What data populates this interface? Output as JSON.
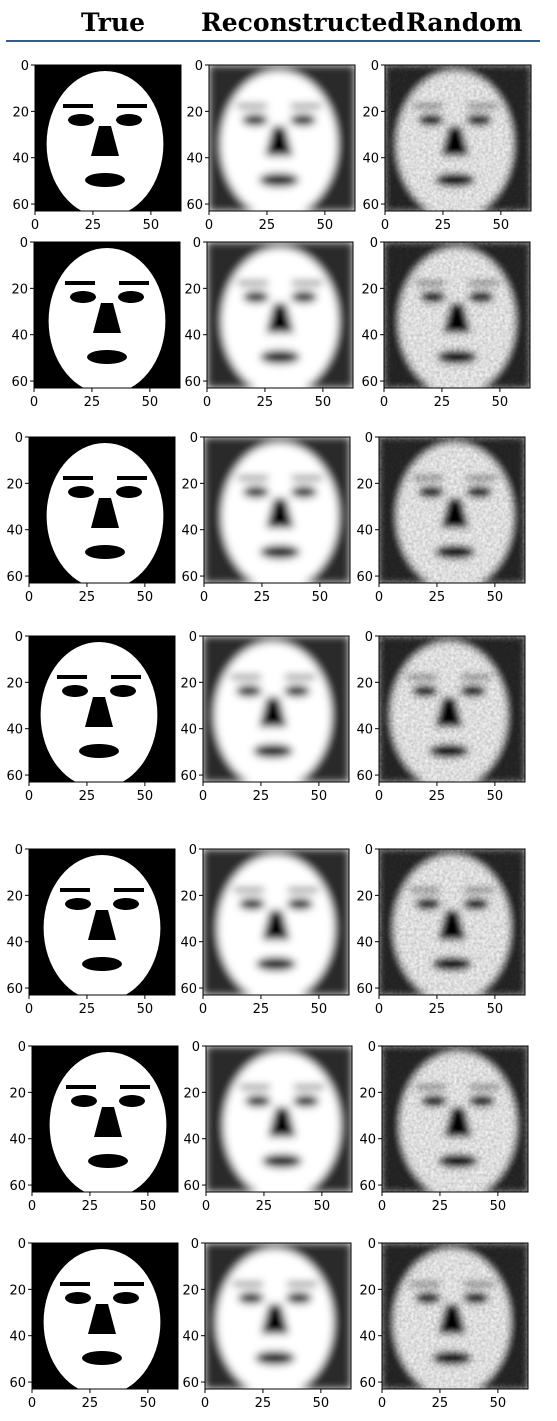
{
  "column_headers": [
    "True",
    "Reconstructed",
    "Random"
  ],
  "colors": {
    "header_rule": "#2f5f8f",
    "axis": "#000000",
    "ink": "#000000",
    "paper": "#ffffff"
  },
  "chart_data": {
    "type": "heatmap",
    "layout": "7 rows x 3 columns grid of grayscale 64x64 face images",
    "colormap": "gray",
    "columns": [
      "True",
      "Reconstructed",
      "Random"
    ],
    "rows": 7,
    "image_size": [
      64,
      64
    ],
    "xlim": [
      0,
      63
    ],
    "ylim": [
      63,
      0
    ],
    "xticks": [
      0,
      25,
      50
    ],
    "yticks": [
      0,
      20,
      40,
      60
    ],
    "xtick_labels": [
      "0",
      "25",
      "50"
    ],
    "ytick_labels": [
      "0",
      "20",
      "40",
      "60"
    ],
    "true_style": "binary black/white",
    "reconstructed_style": "blurred grayscale",
    "random_style": "noisy blurred grayscale"
  }
}
